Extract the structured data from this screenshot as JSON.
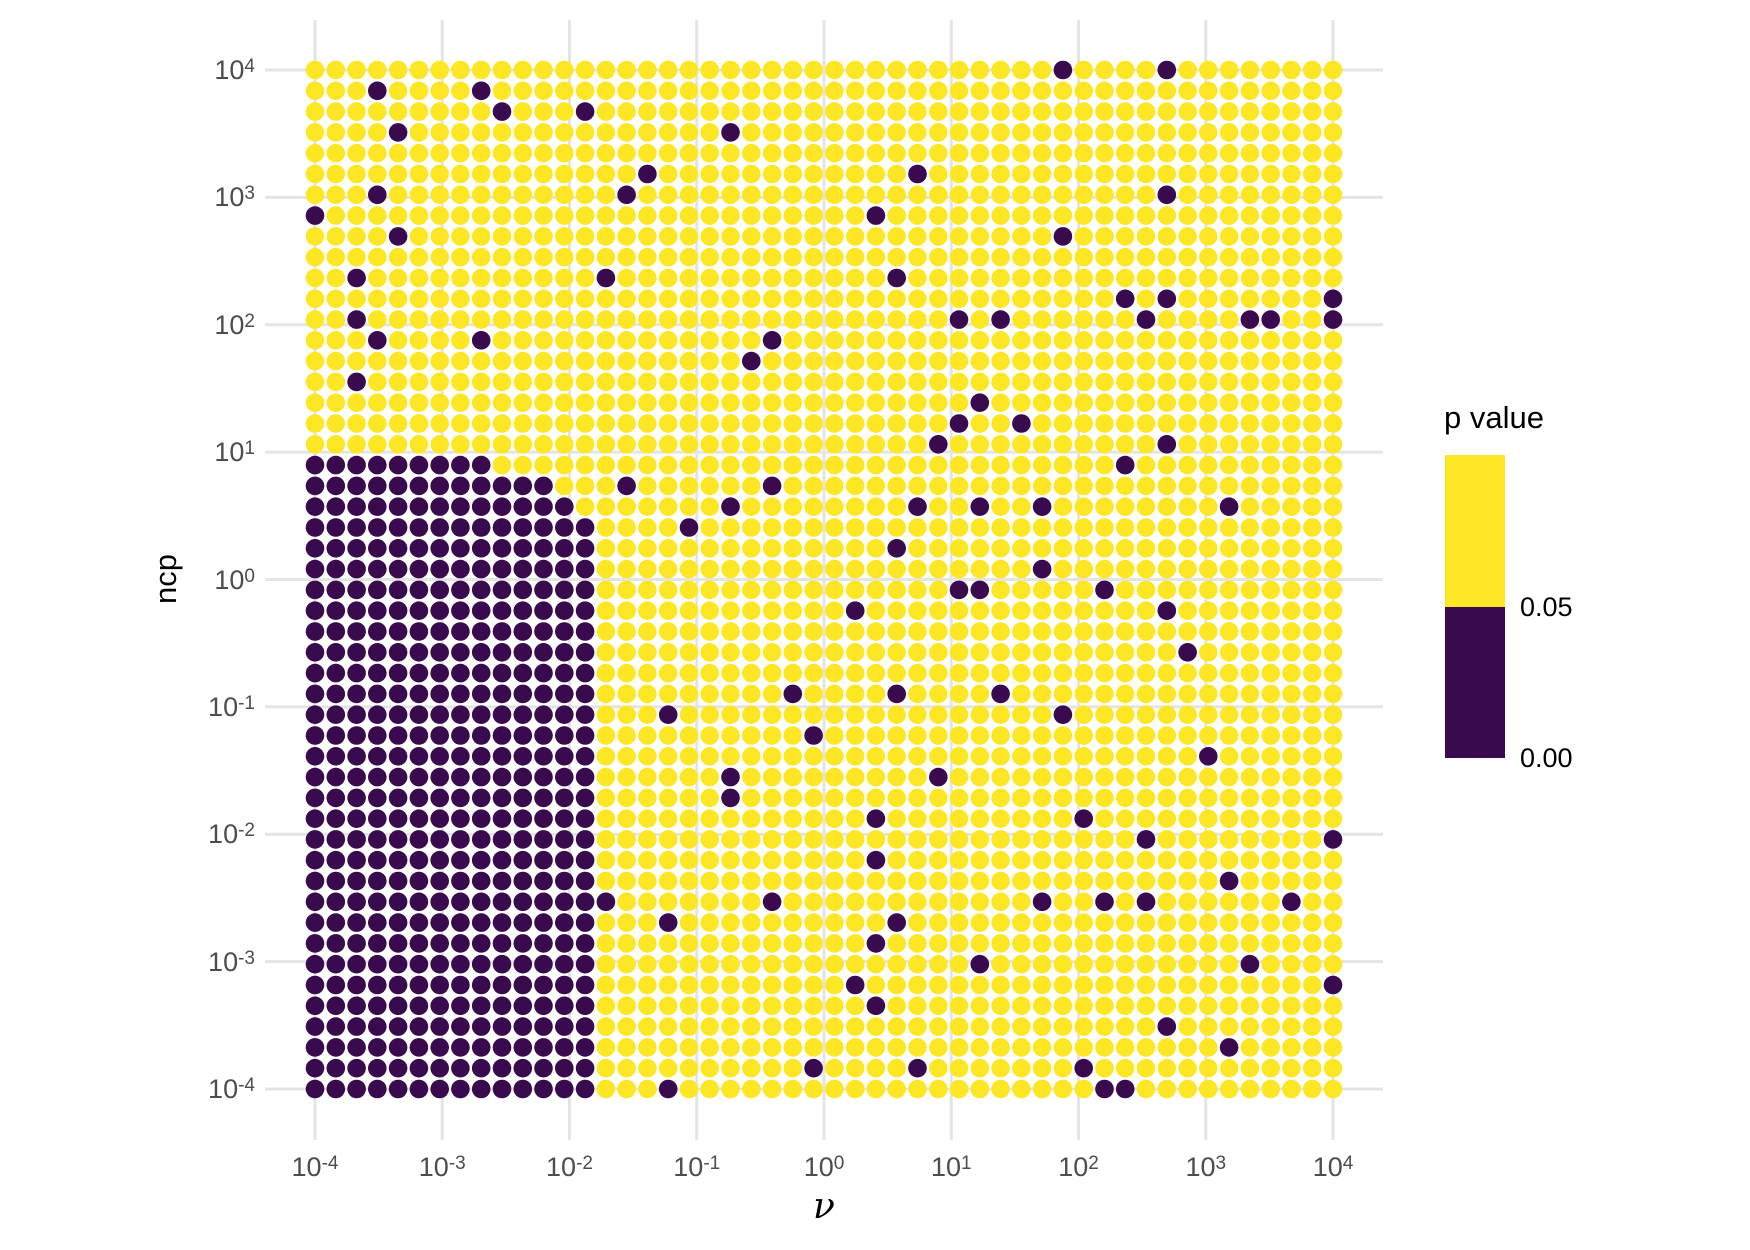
{
  "chart_data": {
    "type": "scatter",
    "title": "",
    "xlabel": "ν",
    "ylabel": "ncp",
    "x_scale": "log10",
    "y_scale": "log10",
    "x_range_exp": [
      -4,
      4
    ],
    "y_range_exp": [
      -4,
      4
    ],
    "grid_points_per_axis": 50,
    "encoding": "50x50 log-spaced grid; col 0..49 = nu 1e-4..1e4 left to right; row 0..49 = ncp 1e4..1e-4 top to bottom; dark = p below 0.05, yellow = p above 0.05",
    "legend_position": "right",
    "grid": "major-only",
    "significant_block": [
      {
        "rows": [
          19,
          19
        ],
        "cols": [
          0,
          8
        ]
      },
      {
        "rows": [
          20,
          20
        ],
        "cols": [
          0,
          11
        ]
      },
      {
        "rows": [
          21,
          21
        ],
        "cols": [
          0,
          12
        ]
      },
      {
        "rows": [
          22,
          49
        ],
        "cols": [
          0,
          13
        ]
      }
    ],
    "significant_extra": [
      [
        36,
        0
      ],
      [
        41,
        0
      ],
      [
        3,
        1
      ],
      [
        8,
        1
      ],
      [
        9,
        2
      ],
      [
        13,
        2
      ],
      [
        4,
        3
      ],
      [
        20,
        3
      ],
      [
        16,
        5
      ],
      [
        29,
        5
      ],
      [
        3,
        6
      ],
      [
        15,
        6
      ],
      [
        41,
        6
      ],
      [
        0,
        7
      ],
      [
        27,
        7
      ],
      [
        4,
        8
      ],
      [
        36,
        8
      ],
      [
        2,
        10
      ],
      [
        14,
        10
      ],
      [
        28,
        10
      ],
      [
        39,
        11
      ],
      [
        41,
        11
      ],
      [
        49,
        11
      ],
      [
        2,
        12
      ],
      [
        31,
        12
      ],
      [
        33,
        12
      ],
      [
        40,
        12
      ],
      [
        45,
        12
      ],
      [
        46,
        12
      ],
      [
        49,
        12
      ],
      [
        3,
        13
      ],
      [
        8,
        13
      ],
      [
        22,
        13
      ],
      [
        21,
        14
      ],
      [
        2,
        15
      ],
      [
        32,
        16
      ],
      [
        31,
        17
      ],
      [
        34,
        17
      ],
      [
        30,
        18
      ],
      [
        41,
        18
      ],
      [
        39,
        19
      ],
      [
        15,
        20
      ],
      [
        22,
        20
      ],
      [
        20,
        21
      ],
      [
        29,
        21
      ],
      [
        32,
        21
      ],
      [
        35,
        21
      ],
      [
        44,
        21
      ],
      [
        18,
        22
      ],
      [
        28,
        23
      ],
      [
        35,
        24
      ],
      [
        31,
        25
      ],
      [
        32,
        25
      ],
      [
        38,
        25
      ],
      [
        26,
        26
      ],
      [
        41,
        26
      ],
      [
        42,
        28
      ],
      [
        23,
        30
      ],
      [
        28,
        30
      ],
      [
        33,
        30
      ],
      [
        17,
        31
      ],
      [
        36,
        31
      ],
      [
        24,
        32
      ],
      [
        43,
        33
      ],
      [
        20,
        34
      ],
      [
        30,
        34
      ],
      [
        20,
        35
      ],
      [
        27,
        36
      ],
      [
        37,
        36
      ],
      [
        40,
        37
      ],
      [
        49,
        37
      ],
      [
        27,
        38
      ],
      [
        44,
        39
      ],
      [
        14,
        40
      ],
      [
        22,
        40
      ],
      [
        35,
        40
      ],
      [
        38,
        40
      ],
      [
        40,
        40
      ],
      [
        47,
        40
      ],
      [
        17,
        41
      ],
      [
        28,
        41
      ],
      [
        27,
        42
      ],
      [
        32,
        43
      ],
      [
        45,
        43
      ],
      [
        26,
        44
      ],
      [
        49,
        44
      ],
      [
        27,
        45
      ],
      [
        41,
        46
      ],
      [
        44,
        47
      ],
      [
        24,
        48
      ],
      [
        29,
        48
      ],
      [
        37,
        48
      ],
      [
        17,
        49
      ],
      [
        38,
        49
      ],
      [
        39,
        49
      ]
    ]
  },
  "axes": {
    "x": {
      "title": "ν",
      "tick_base": "10",
      "tick_exps": [
        "-4",
        "-3",
        "-2",
        "-1",
        "0",
        "1",
        "2",
        "3",
        "4"
      ]
    },
    "y": {
      "title": "ncp",
      "tick_base": "10",
      "tick_exps": [
        "4",
        "3",
        "2",
        "1",
        "0",
        "-1",
        "-2",
        "-3",
        "-4"
      ]
    }
  },
  "legend": {
    "title": "p value",
    "upper_label": "0.05",
    "lower_label": "0.00"
  },
  "colors": {
    "significant": "#390A4E",
    "not_significant": "#FDE725",
    "gridline": "#E4E4E4",
    "tick_text": "#4D4D4D",
    "title_text": "#000000"
  }
}
